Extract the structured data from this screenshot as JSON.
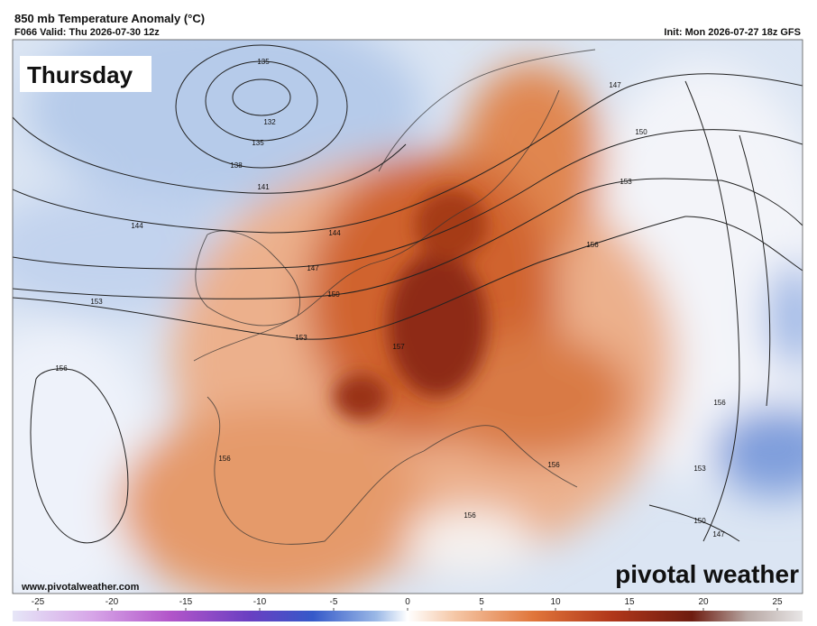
{
  "header": {
    "title": "850 mb Temperature Anomaly (°C)",
    "valid": "F066 Valid: Thu 2026-07-30 12z",
    "init": "Init: Mon 2026-07-27 18z GFS"
  },
  "map": {
    "day_label": "Thursday",
    "website": "www.pivotalweather.com",
    "logo": "pivotal weather",
    "contour_labels": [
      135,
      132,
      135,
      138,
      141,
      144,
      144,
      147,
      150,
      153,
      153,
      156,
      157,
      147,
      150,
      153,
      156,
      156,
      153,
      150,
      147,
      156,
      156,
      156
    ]
  },
  "colorbar": {
    "lim": [
      -25,
      25
    ],
    "ticks": [
      -25,
      -20,
      -15,
      -10,
      -5,
      0,
      5,
      10,
      15,
      20,
      25
    ]
  }
}
